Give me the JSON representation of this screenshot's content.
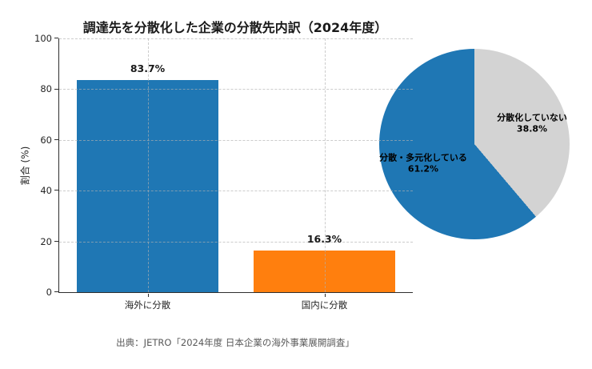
{
  "figure": {
    "title": "調達先を分散化した企業の分散先内訳（2024年度）",
    "source_note": "出典：JETRO「2024年度 日本企業の海外事業展開調査」"
  },
  "colors": {
    "bar_overseas": "#1f77b4",
    "bar_domestic": "#ff7f0e",
    "pie_diversified": "#1f77b4",
    "pie_not_diversified": "#d3d3d3",
    "axis": "#2e2e2e",
    "gridline": "#b0b0b0",
    "source_text": "#595959"
  },
  "chart_data": [
    {
      "type": "bar",
      "title": "調達先を分散化した企業の分散先内訳（2024年度）",
      "categories": [
        "海外に分散",
        "国内に分散"
      ],
      "values": [
        83.7,
        16.3
      ],
      "value_labels": [
        "83.7%",
        "16.3%"
      ],
      "bar_colors": [
        "#1f77b4",
        "#ff7f0e"
      ],
      "xlabel": "",
      "ylabel": "割合 (%)",
      "ylim": [
        0,
        100
      ],
      "yticks": [
        0,
        20,
        40,
        60,
        80,
        100
      ],
      "grid": "dashed, horizontal at yticks and vertical at bar centers, drawn above bars",
      "legend": "none"
    },
    {
      "type": "pie",
      "slices": [
        {
          "label": "分散・多元化している",
          "value": 61.2,
          "pct_label": "61.2%",
          "color": "#1f77b4"
        },
        {
          "label": "分散化していない",
          "value": 38.8,
          "pct_label": "38.8%",
          "color": "#d3d3d3"
        }
      ],
      "start_angle_deg": 90,
      "direction": "counterclockwise",
      "legend": "none"
    }
  ]
}
